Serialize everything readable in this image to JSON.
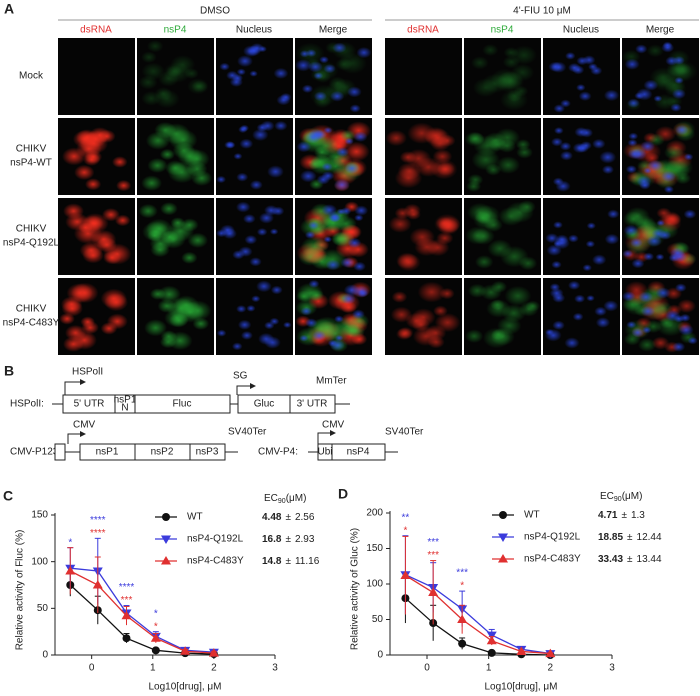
{
  "panel_a": {
    "label": "A",
    "groups": [
      "DMSO",
      "4'-FIU 10 μM"
    ],
    "channels": [
      "dsRNA",
      "nsP4",
      "Nucleus",
      "Merge"
    ],
    "channel_colors": [
      "#e03030",
      "#2eaa3a",
      "#222222",
      "#222222"
    ],
    "rows": [
      [
        "Mock"
      ],
      [
        "CHIKV",
        "nsP4-WT"
      ],
      [
        "CHIKV",
        "nsP4-Q192L"
      ],
      [
        "CHIKV",
        "nsP4-C483Y"
      ]
    ]
  },
  "panel_b": {
    "label": "B",
    "hspoli": {
      "name": "HSPolI:",
      "promoter": "HSPolI",
      "boxes": [
        "5' UTR",
        [
          "nsP1",
          "N"
        ],
        "Fluc"
      ],
      "sg": "SG",
      "sg_boxes": [
        "Gluc",
        "3' UTR"
      ],
      "terminator": "MmTer"
    },
    "p123": {
      "name": "CMV-P123:",
      "promoter": "CMV",
      "boxes": [
        "nsP1",
        "nsP2",
        "nsP3"
      ],
      "terminator": "SV40Ter"
    },
    "p4": {
      "name": "CMV-P4:",
      "promoter": "CMV",
      "boxes": [
        "Ubi",
        "nsP4"
      ],
      "terminator": "SV40Ter"
    }
  },
  "chart_data": [
    {
      "type": "line",
      "label": "C",
      "ylabel": "Relative activity of Fluc (%)",
      "xlabel": "Log10[drug], μM",
      "x": [
        -0.35,
        0.1,
        0.57,
        1.05,
        1.53,
        2.0
      ],
      "xlim": [
        -0.6,
        3
      ],
      "xticks": [
        0,
        1,
        2,
        3
      ],
      "ylim": [
        0,
        150
      ],
      "yticks": [
        0,
        50,
        100,
        150
      ],
      "legend_header": {
        "text": "EC",
        "sub": "90",
        "unit": "(μM)"
      },
      "ec90_separator": "±",
      "series": [
        {
          "name": "WT",
          "color": "#111111",
          "marker": "circle",
          "values": [
            75,
            48,
            18,
            5,
            2,
            1
          ],
          "errors": [
            12,
            15,
            5,
            2,
            1,
            1
          ],
          "ec90": 4.48,
          "ec90_sd": 2.56,
          "significance": [
            null,
            null,
            null,
            null,
            null,
            null
          ]
        },
        {
          "name": "nsP4-Q192L",
          "color": "#3b3bdc",
          "marker": "triangle-down",
          "values": [
            93,
            90,
            45,
            20,
            5,
            3
          ],
          "errors": [
            22,
            35,
            8,
            5,
            2,
            2
          ],
          "ec90": 16.8,
          "ec90_sd": 2.93,
          "significance": [
            "*",
            "****",
            "****",
            "*",
            null,
            null
          ]
        },
        {
          "name": "nsP4-C483Y",
          "color": "#e03030",
          "marker": "triangle-up",
          "values": [
            90,
            75,
            42,
            18,
            4,
            2
          ],
          "errors": [
            25,
            30,
            10,
            5,
            2,
            2
          ],
          "ec90": 14.8,
          "ec90_sd": 11.16,
          "significance": [
            null,
            "****",
            "***",
            "*",
            null,
            null
          ]
        }
      ]
    },
    {
      "type": "line",
      "label": "D",
      "ylabel": "Relative activity of Gluc (%)",
      "xlabel": "Log10[drug], μM",
      "x": [
        -0.35,
        0.1,
        0.57,
        1.05,
        1.53,
        2.0
      ],
      "xlim": [
        -0.6,
        3
      ],
      "xticks": [
        0,
        1,
        2,
        3
      ],
      "ylim": [
        0,
        200
      ],
      "yticks": [
        0,
        50,
        100,
        150,
        200
      ],
      "legend_header": {
        "text": "EC",
        "sub": "90",
        "unit": "(μM)"
      },
      "ec90_separator": "±",
      "series": [
        {
          "name": "WT",
          "color": "#111111",
          "marker": "circle",
          "values": [
            80,
            45,
            16,
            3,
            1,
            0
          ],
          "errors": [
            35,
            25,
            8,
            2,
            1,
            1
          ],
          "ec90": 4.71,
          "ec90_sd": 1.3,
          "significance": [
            null,
            null,
            null,
            null,
            null,
            null
          ]
        },
        {
          "name": "nsP4-Q192L",
          "color": "#3b3bdc",
          "marker": "triangle-down",
          "values": [
            113,
            95,
            65,
            28,
            8,
            2
          ],
          "errors": [
            55,
            35,
            25,
            8,
            3,
            2
          ],
          "ec90": 18.85,
          "ec90_sd": 12.44,
          "significance": [
            "**",
            "***",
            "***",
            null,
            null,
            null
          ]
        },
        {
          "name": "nsP4-C483Y",
          "color": "#e03030",
          "marker": "triangle-up",
          "values": [
            112,
            88,
            50,
            20,
            5,
            2
          ],
          "errors": [
            55,
            45,
            20,
            6,
            2,
            1
          ],
          "ec90": 33.43,
          "ec90_sd": 13.44,
          "significance": [
            "*",
            "***",
            "*",
            null,
            null,
            null
          ]
        }
      ]
    }
  ]
}
